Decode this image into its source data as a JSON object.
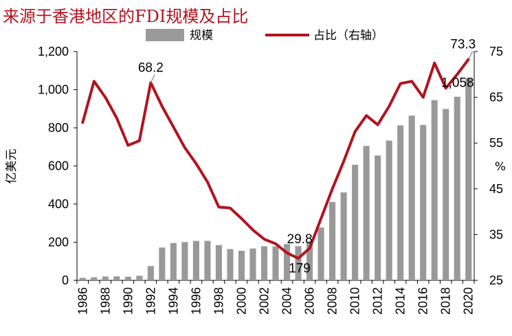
{
  "chart_data": {
    "type": "bar+line",
    "title": "来源于香港地区的FDI规模及占比",
    "categories": [
      "1986",
      "1987",
      "1988",
      "1989",
      "1990",
      "1991",
      "1992",
      "1993",
      "1994",
      "1995",
      "1996",
      "1997",
      "1998",
      "1999",
      "2000",
      "2001",
      "2002",
      "2003",
      "2004",
      "2005",
      "2006",
      "2007",
      "2008",
      "2009",
      "2010",
      "2011",
      "2012",
      "2013",
      "2014",
      "2015",
      "2016",
      "2017",
      "2018",
      "2019",
      "2020"
    ],
    "x_tick_labels": [
      "1986",
      "1988",
      "1990",
      "1992",
      "1994",
      "1996",
      "1998",
      "2000",
      "2002",
      "2004",
      "2006",
      "2008",
      "2010",
      "2012",
      "2014",
      "2016",
      "2018",
      "2020"
    ],
    "series": [
      {
        "name": "规模",
        "type": "bar",
        "axis": "left",
        "color": "#999999",
        "values": [
          13,
          16,
          20,
          21,
          19,
          24,
          75,
          172,
          196,
          201,
          207,
          207,
          185,
          164,
          155,
          167,
          179,
          178,
          190,
          179,
          203,
          277,
          411,
          461,
          606,
          705,
          655,
          733,
          813,
          864,
          815,
          945,
          899,
          963,
          1058
        ]
      },
      {
        "name": "占比（右轴）",
        "type": "line",
        "axis": "right",
        "color": "#b3121f",
        "values": [
          59.5,
          68.5,
          65.0,
          60.5,
          54.5,
          55.5,
          68.2,
          63.0,
          58.5,
          54.0,
          50.5,
          46.5,
          41.0,
          40.8,
          38.5,
          36.0,
          34.0,
          33.0,
          31.0,
          29.8,
          32.0,
          38.5,
          45.0,
          51.0,
          57.5,
          61.0,
          59.0,
          63.0,
          68.0,
          68.5,
          65.0,
          72.5,
          67.0,
          70.0,
          73.3
        ]
      }
    ],
    "y_left": {
      "label": "亿美元",
      "min": 0,
      "max": 1200,
      "ticks": [
        "0",
        "200",
        "400",
        "600",
        "800",
        "1,000",
        "1,200"
      ]
    },
    "y_right": {
      "label": "%",
      "min": 25,
      "max": 75,
      "ticks": [
        "25",
        "35",
        "45",
        "55",
        "65",
        "75"
      ]
    },
    "annotations": [
      {
        "text": "68.2",
        "series": "占比（右轴）",
        "category": "1992"
      },
      {
        "text": "29.8",
        "series": "占比（右轴）",
        "category": "2005"
      },
      {
        "text": "179",
        "series": "规模",
        "category": "2005"
      },
      {
        "text": "1,058",
        "series": "规模",
        "category": "2020"
      },
      {
        "text": "73.3",
        "series": "占比（右轴）",
        "category": "2020"
      }
    ],
    "legend_position": "top",
    "grid": false
  }
}
